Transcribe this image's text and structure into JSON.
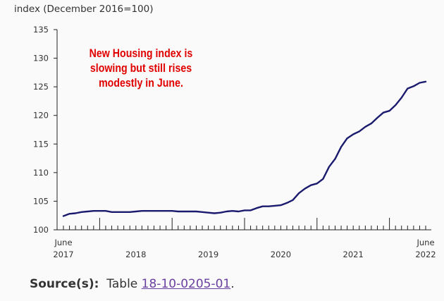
{
  "chart_data": {
    "type": "line",
    "title": "",
    "ylabel": "index (December 2016=100)",
    "xlabel": "",
    "ylim": [
      100,
      135
    ],
    "yticks": [
      100,
      105,
      110,
      115,
      120,
      125,
      130,
      135
    ],
    "x_start": "2017-06",
    "x_end": "2022-06",
    "x_tick_labels": [
      {
        "month": "2017-06",
        "lines": [
          "June",
          "2017"
        ]
      },
      {
        "month": "2018-06",
        "lines": [
          "2018"
        ]
      },
      {
        "month": "2019-06",
        "lines": [
          "2019"
        ]
      },
      {
        "month": "2020-06",
        "lines": [
          "2020"
        ]
      },
      {
        "month": "2021-06",
        "lines": [
          "2021"
        ]
      },
      {
        "month": "2022-06",
        "lines": [
          "June",
          "2022"
        ]
      }
    ],
    "grid": false,
    "line_color": "#1a1a6e",
    "annotation": [
      "New Housing index is",
      "slowing but still rises",
      "modestly in June."
    ],
    "annotation_color": "#e00000",
    "series": [
      {
        "x": [
          "2017-06",
          "2017-07",
          "2017-08",
          "2017-09",
          "2017-10",
          "2017-11",
          "2017-12",
          "2018-01",
          "2018-02",
          "2018-03",
          "2018-04",
          "2018-05",
          "2018-06",
          "2018-07",
          "2018-08",
          "2018-09",
          "2018-10",
          "2018-11",
          "2018-12",
          "2019-01",
          "2019-02",
          "2019-03",
          "2019-04",
          "2019-05",
          "2019-06",
          "2019-07",
          "2019-08",
          "2019-09",
          "2019-10",
          "2019-11",
          "2019-12",
          "2020-01",
          "2020-02",
          "2020-03",
          "2020-04",
          "2020-05",
          "2020-06",
          "2020-07",
          "2020-08",
          "2020-09",
          "2020-10",
          "2020-11",
          "2020-12",
          "2021-01",
          "2021-02",
          "2021-03",
          "2021-04",
          "2021-05",
          "2021-06",
          "2021-07",
          "2021-08",
          "2021-09",
          "2021-10",
          "2021-11",
          "2021-12",
          "2022-01",
          "2022-02",
          "2022-03",
          "2022-04",
          "2022-05",
          "2022-06"
        ],
        "values": [
          102.4,
          102.8,
          102.9,
          103.1,
          103.2,
          103.3,
          103.3,
          103.3,
          103.1,
          103.1,
          103.1,
          103.1,
          103.2,
          103.3,
          103.3,
          103.3,
          103.3,
          103.3,
          103.3,
          103.2,
          103.2,
          103.2,
          103.2,
          103.1,
          103.0,
          102.9,
          103.0,
          103.2,
          103.3,
          103.2,
          103.4,
          103.4,
          103.8,
          104.1,
          104.1,
          104.2,
          104.3,
          104.7,
          105.2,
          106.4,
          107.2,
          107.8,
          108.1,
          108.9,
          111.0,
          112.4,
          114.5,
          116.0,
          116.7,
          117.2,
          118.0,
          118.6,
          119.6,
          120.5,
          120.8,
          121.8,
          123.1,
          124.7,
          125.1,
          125.7,
          125.9
        ]
      }
    ]
  },
  "source": {
    "label": "Source(s):",
    "text": "Table",
    "link_text": "18-10-0205-01",
    "suffix": "."
  }
}
